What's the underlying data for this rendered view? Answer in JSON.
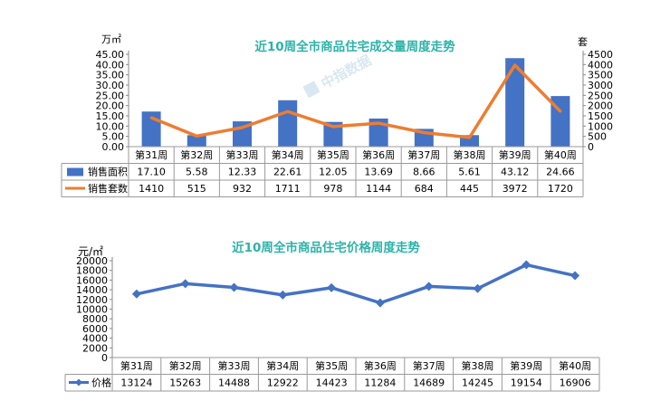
{
  "chart_data": [
    {
      "type": "bar+line",
      "title": "近10周全市商品住宅成交量周度走势",
      "left_unit": "万㎡",
      "right_unit": "套",
      "watermark": "中指数据",
      "categories": [
        "第31周",
        "第32周",
        "第33周",
        "第34周",
        "第35周",
        "第36周",
        "第37周",
        "第38周",
        "第39周",
        "第40周"
      ],
      "series": [
        {
          "name": "销售面积",
          "type": "bar",
          "axis": "left",
          "color": "#4472C4",
          "values": [
            17.1,
            5.58,
            12.33,
            22.61,
            12.05,
            13.69,
            8.66,
            5.61,
            43.12,
            24.66
          ],
          "labels": [
            "17.10",
            "5.58",
            "12.33",
            "22.61",
            "12.05",
            "13.69",
            "8.66",
            "5.61",
            "43.12",
            "24.66"
          ]
        },
        {
          "name": "销售套数",
          "type": "line",
          "axis": "right",
          "color": "#ED7D31",
          "values": [
            1410,
            515,
            932,
            1711,
            978,
            1144,
            684,
            445,
            3972,
            1720
          ],
          "labels": [
            "1410",
            "515",
            "932",
            "1711",
            "978",
            "1144",
            "684",
            "445",
            "3972",
            "1720"
          ]
        }
      ],
      "left_axis": {
        "min": 0,
        "max": 45,
        "ticks": [
          "0.00",
          "5.00",
          "10.00",
          "15.00",
          "20.00",
          "25.00",
          "30.00",
          "35.00",
          "40.00",
          "45.00"
        ]
      },
      "right_axis": {
        "min": 0,
        "max": 4500,
        "ticks": [
          "0",
          "500",
          "1000",
          "1500",
          "2000",
          "2500",
          "3000",
          "3500",
          "4000",
          "4500"
        ]
      },
      "data_table": true
    },
    {
      "type": "line",
      "title": "近10周全市商品住宅价格周度走势",
      "left_unit": "元/㎡",
      "categories": [
        "第31周",
        "第32周",
        "第33周",
        "第34周",
        "第35周",
        "第36周",
        "第37周",
        "第38周",
        "第39周",
        "第40周"
      ],
      "series": [
        {
          "name": "价格",
          "type": "line",
          "axis": "left",
          "color": "#4472C4",
          "values": [
            13124,
            15263,
            14488,
            12922,
            14423,
            11284,
            14689,
            14245,
            19154,
            16906
          ],
          "labels": [
            "13124",
            "15263",
            "14488",
            "12922",
            "14423",
            "11284",
            "14689",
            "14245",
            "19154",
            "16906"
          ]
        }
      ],
      "left_axis": {
        "min": 0,
        "max": 20000,
        "ticks": [
          "0",
          "2000",
          "4000",
          "6000",
          "8000",
          "10000",
          "12000",
          "14000",
          "16000",
          "18000",
          "20000"
        ]
      },
      "data_table": true
    }
  ]
}
